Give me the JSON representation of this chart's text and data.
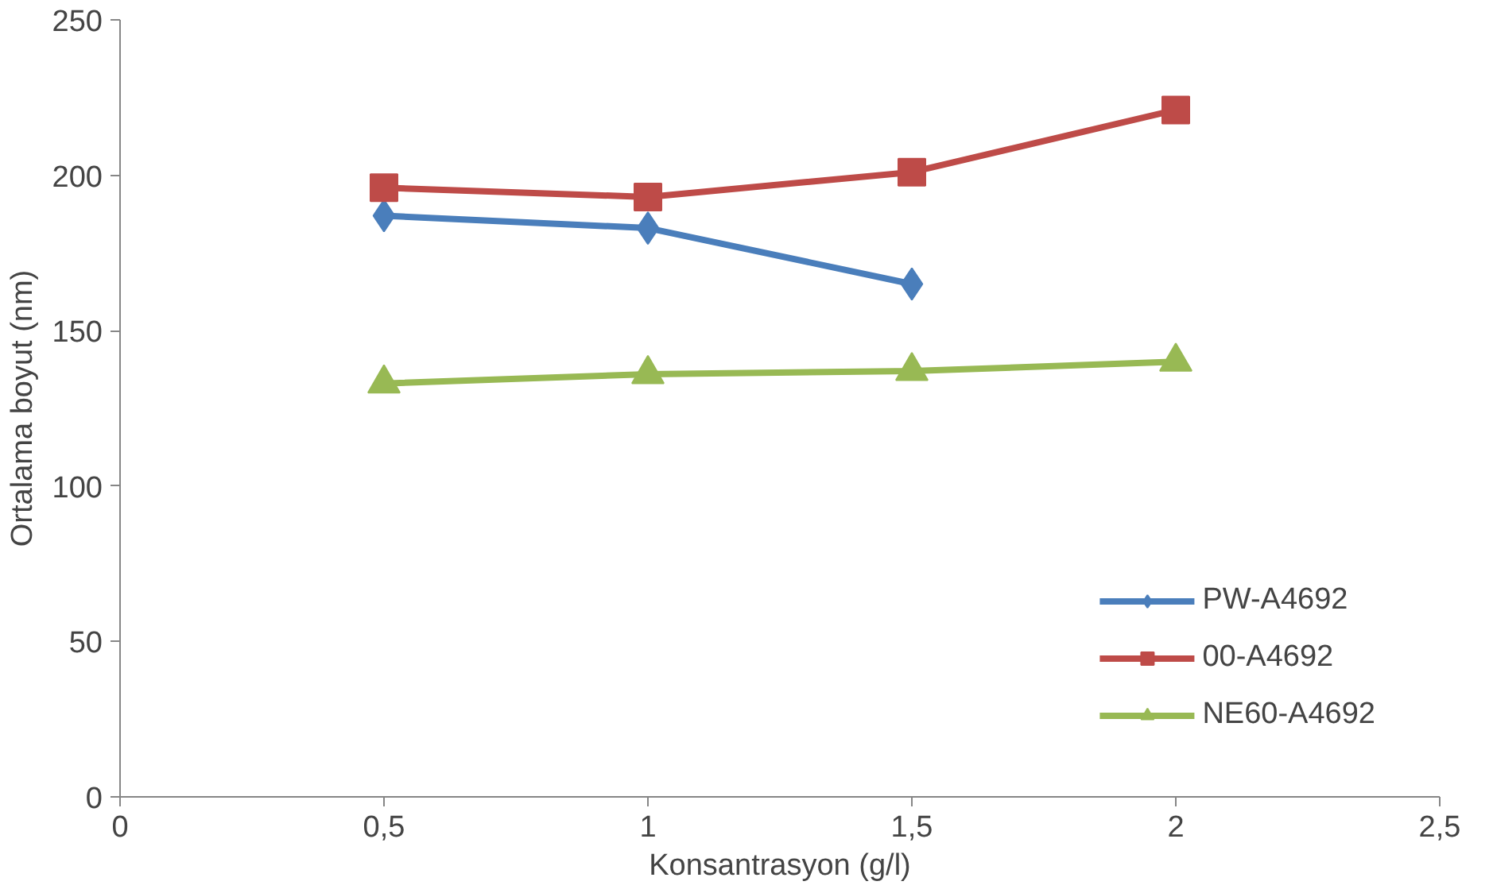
{
  "chart_data": {
    "type": "line",
    "xlabel": "Konsantrasyon (g/l)",
    "ylabel": "Ortalama boyut (nm)",
    "xlim": [
      0,
      2.5
    ],
    "xticks": [
      0,
      {
        "value": 0.5,
        "label": "0,5"
      },
      1,
      {
        "value": 1.5,
        "label": "1,5"
      },
      2,
      {
        "value": 2.5,
        "label": "2,5"
      }
    ],
    "ylim": [
      0,
      250
    ],
    "yticks": [
      0,
      50,
      100,
      150,
      200,
      250
    ],
    "grid": false,
    "legend": "bottom right",
    "line_style": "solid",
    "series": [
      {
        "name": "PW-A4692",
        "color": "#4a7ebb",
        "marker": "diamond",
        "x": [
          0.5,
          1,
          1.5
        ],
        "values": [
          187,
          183,
          165
        ]
      },
      {
        "name": "00-A4692",
        "color": "#be4b48",
        "marker": "square",
        "x": [
          0.5,
          1,
          1.5,
          2
        ],
        "values": [
          196,
          193,
          201,
          221
        ]
      },
      {
        "name": "NE60-A4692",
        "color": "#98b954",
        "marker": "triangle",
        "x": [
          0.5,
          1,
          1.5,
          2
        ],
        "values": [
          133,
          136,
          137,
          140
        ]
      }
    ]
  }
}
